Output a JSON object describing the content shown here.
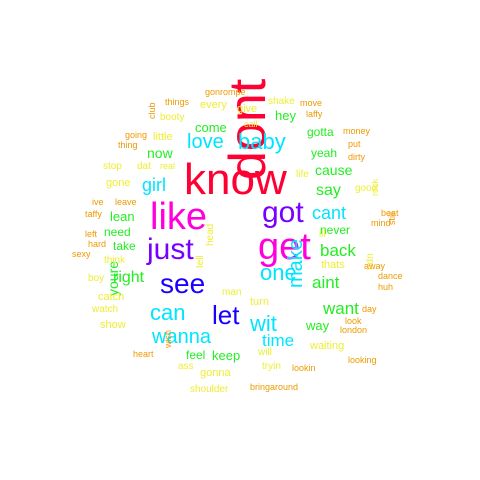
{
  "colors": {
    "red": "#ff0033",
    "magenta": "#ff00dd",
    "purple": "#7700ff",
    "blue": "#1a00ff",
    "cyan": "#00e5ff",
    "green": "#22ee22",
    "yellow": "#eeee33",
    "orange": "#ee9900"
  },
  "words": [
    {
      "text": "know",
      "color": "red"
    },
    {
      "text": "dont",
      "color": "red"
    },
    {
      "text": "get",
      "color": "magenta"
    },
    {
      "text": "like",
      "color": "magenta"
    },
    {
      "text": "got",
      "color": "purple"
    },
    {
      "text": "just",
      "color": "purple"
    },
    {
      "text": "see",
      "color": "blue"
    },
    {
      "text": "let",
      "color": "blue"
    },
    {
      "text": "can",
      "color": "cyan"
    },
    {
      "text": "one",
      "color": "cyan"
    },
    {
      "text": "wit",
      "color": "cyan"
    },
    {
      "text": "baby",
      "color": "cyan"
    },
    {
      "text": "love",
      "color": "cyan"
    },
    {
      "text": "girl",
      "color": "cyan"
    },
    {
      "text": "wanna",
      "color": "cyan"
    },
    {
      "text": "make",
      "color": "cyan"
    },
    {
      "text": "cant",
      "color": "cyan"
    },
    {
      "text": "time",
      "color": "cyan"
    },
    {
      "text": "back",
      "color": "green"
    },
    {
      "text": "aint",
      "color": "green"
    },
    {
      "text": "want",
      "color": "green"
    },
    {
      "text": "right",
      "color": "green"
    },
    {
      "text": "say",
      "color": "green"
    },
    {
      "text": "cause",
      "color": "green"
    },
    {
      "text": "youre",
      "color": "green"
    },
    {
      "text": "now",
      "color": "green"
    },
    {
      "text": "lean",
      "color": "green"
    },
    {
      "text": "come",
      "color": "green"
    },
    {
      "text": "keep",
      "color": "green"
    },
    {
      "text": "hey",
      "color": "green"
    },
    {
      "text": "way",
      "color": "green"
    },
    {
      "text": "never",
      "color": "green"
    },
    {
      "text": "take",
      "color": "green"
    },
    {
      "text": "gotta",
      "color": "green"
    },
    {
      "text": "yeah",
      "color": "green"
    },
    {
      "text": "need",
      "color": "green"
    },
    {
      "text": "feel",
      "color": "green"
    },
    {
      "text": "gone",
      "color": "yellow"
    },
    {
      "text": "turn",
      "color": "yellow"
    },
    {
      "text": "waiting",
      "color": "yellow"
    },
    {
      "text": "gonna",
      "color": "yellow"
    },
    {
      "text": "thats",
      "color": "yellow"
    },
    {
      "text": "catch",
      "color": "yellow"
    },
    {
      "text": "show",
      "color": "yellow"
    },
    {
      "text": "every",
      "color": "yellow"
    },
    {
      "text": "give",
      "color": "yellow"
    },
    {
      "text": "little",
      "color": "yellow"
    },
    {
      "text": "stop",
      "color": "yellow"
    },
    {
      "text": "booty",
      "color": "yellow"
    },
    {
      "text": "man",
      "color": "yellow"
    },
    {
      "text": "tell",
      "color": "yellow"
    },
    {
      "text": "head",
      "color": "yellow"
    },
    {
      "text": "shoulder",
      "color": "yellow"
    },
    {
      "text": "tryin",
      "color": "yellow"
    },
    {
      "text": "think",
      "color": "yellow"
    },
    {
      "text": "ass",
      "color": "yellow"
    },
    {
      "text": "boy",
      "color": "yellow"
    },
    {
      "text": "shake",
      "color": "yellow"
    },
    {
      "text": "watch",
      "color": "yellow"
    },
    {
      "text": "life",
      "color": "yellow"
    },
    {
      "text": "ill",
      "color": "yellow"
    },
    {
      "text": "dat",
      "color": "yellow"
    },
    {
      "text": "will",
      "color": "yellow"
    },
    {
      "text": "ndn",
      "color": "yellow"
    },
    {
      "text": "good",
      "color": "yellow"
    },
    {
      "text": "rock",
      "color": "yellow"
    },
    {
      "text": "call",
      "color": "yellow"
    },
    {
      "text": "real",
      "color": "yellow"
    },
    {
      "text": "thing",
      "color": "orange"
    },
    {
      "text": "away",
      "color": "orange"
    },
    {
      "text": "huh",
      "color": "orange"
    },
    {
      "text": "things",
      "color": "orange"
    },
    {
      "text": "dirty",
      "color": "orange"
    },
    {
      "text": "london",
      "color": "orange"
    },
    {
      "text": "look",
      "color": "orange"
    },
    {
      "text": "money",
      "color": "orange"
    },
    {
      "text": "put",
      "color": "orange"
    },
    {
      "text": "laffy",
      "color": "orange"
    },
    {
      "text": "taffy",
      "color": "orange"
    },
    {
      "text": "dance",
      "color": "orange"
    },
    {
      "text": "beat",
      "color": "orange"
    },
    {
      "text": "mind",
      "color": "orange"
    },
    {
      "text": "still",
      "color": "orange"
    },
    {
      "text": "day",
      "color": "orange"
    },
    {
      "text": "sexy",
      "color": "orange"
    },
    {
      "text": "hard",
      "color": "orange"
    },
    {
      "text": "left",
      "color": "orange"
    },
    {
      "text": "ive",
      "color": "orange"
    },
    {
      "text": "leave",
      "color": "orange"
    },
    {
      "text": "heart",
      "color": "orange"
    },
    {
      "text": "wish",
      "color": "orange"
    },
    {
      "text": "going",
      "color": "orange"
    },
    {
      "text": "club",
      "color": "orange"
    },
    {
      "text": "gonrompe",
      "color": "orange"
    },
    {
      "text": "move",
      "color": "orange"
    },
    {
      "text": "looking",
      "color": "orange"
    },
    {
      "text": "lookin",
      "color": "orange"
    },
    {
      "text": "bringaround",
      "color": "orange"
    }
  ]
}
